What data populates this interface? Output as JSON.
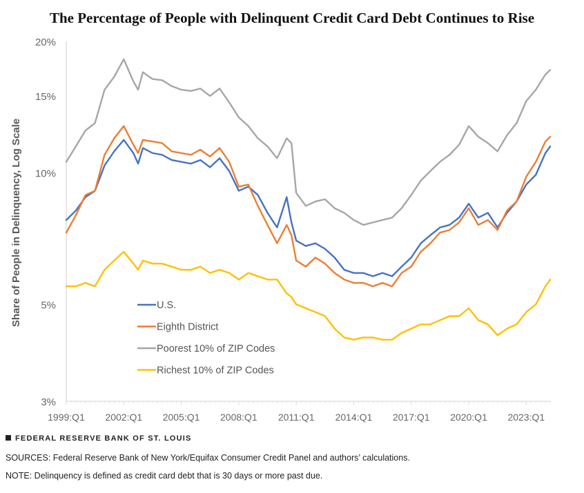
{
  "chart_data": {
    "type": "line",
    "title": "The Percentage of People with Delinquent Credit Card Debt Continues to Rise",
    "ylabel": "Share of People in Delinquency, Log Scale",
    "xlabel": "",
    "y_scale": "log",
    "ylim": [
      3,
      20
    ],
    "y_ticks": [
      3,
      5,
      10,
      15,
      20
    ],
    "y_tick_labels": [
      "3%",
      "5%",
      "10%",
      "15%",
      "20%"
    ],
    "x_ticks": [
      "1999:Q1",
      "2002:Q1",
      "2005:Q1",
      "2008:Q1",
      "2011:Q1",
      "2014:Q1",
      "2017:Q1",
      "2020:Q1",
      "2023:Q1"
    ],
    "x_start": 1999.0,
    "x_end": 2024.25,
    "grid": false,
    "legend_position": "lower-left",
    "series": [
      {
        "name": "U.S.",
        "color": "#4472c4",
        "x": [
          1999.0,
          1999.5,
          2000.0,
          2000.5,
          2001.0,
          2001.5,
          2002.0,
          2002.5,
          2002.75,
          2003.0,
          2003.5,
          2004.0,
          2004.5,
          2005.0,
          2005.5,
          2006.0,
          2006.5,
          2007.0,
          2007.5,
          2008.0,
          2008.5,
          2009.0,
          2009.5,
          2010.0,
          2010.5,
          2010.75,
          2011.0,
          2011.5,
          2012.0,
          2012.5,
          2013.0,
          2013.5,
          2014.0,
          2014.5,
          2015.0,
          2015.5,
          2016.0,
          2016.5,
          2017.0,
          2017.5,
          2018.0,
          2018.5,
          2019.0,
          2019.5,
          2020.0,
          2020.5,
          2021.0,
          2021.5,
          2022.0,
          2022.5,
          2023.0,
          2023.5,
          2024.0,
          2024.25
        ],
        "values": [
          7.8,
          8.2,
          8.8,
          9.1,
          10.4,
          11.2,
          11.9,
          11.1,
          10.5,
          11.4,
          11.1,
          11.0,
          10.7,
          10.6,
          10.5,
          10.7,
          10.3,
          10.8,
          10.1,
          9.1,
          9.3,
          8.9,
          8.1,
          7.5,
          8.8,
          7.7,
          7.0,
          6.8,
          6.9,
          6.7,
          6.4,
          6.0,
          5.9,
          5.9,
          5.8,
          5.9,
          5.8,
          6.1,
          6.4,
          6.9,
          7.2,
          7.5,
          7.6,
          7.9,
          8.5,
          7.9,
          8.1,
          7.5,
          8.1,
          8.6,
          9.4,
          9.9,
          11.1,
          11.5
        ]
      },
      {
        "name": "Eighth District",
        "color": "#ed7d31",
        "x": [
          1999.0,
          1999.5,
          2000.0,
          2000.5,
          2001.0,
          2001.5,
          2002.0,
          2002.5,
          2002.75,
          2003.0,
          2003.5,
          2004.0,
          2004.5,
          2005.0,
          2005.5,
          2006.0,
          2006.5,
          2007.0,
          2007.5,
          2008.0,
          2008.5,
          2009.0,
          2009.5,
          2010.0,
          2010.5,
          2010.75,
          2011.0,
          2011.5,
          2012.0,
          2012.5,
          2013.0,
          2013.5,
          2014.0,
          2014.5,
          2015.0,
          2015.5,
          2016.0,
          2016.5,
          2017.0,
          2017.5,
          2018.0,
          2018.5,
          2019.0,
          2019.5,
          2020.0,
          2020.5,
          2021.0,
          2021.5,
          2022.0,
          2022.5,
          2023.0,
          2023.5,
          2024.0,
          2024.25
        ],
        "values": [
          7.3,
          8.0,
          8.9,
          9.1,
          11.0,
          12.0,
          12.8,
          11.6,
          11.1,
          11.9,
          11.8,
          11.7,
          11.2,
          11.1,
          11.0,
          11.3,
          10.9,
          11.4,
          10.6,
          9.3,
          9.4,
          8.4,
          7.6,
          6.9,
          7.6,
          7.2,
          6.3,
          6.1,
          6.4,
          6.2,
          5.9,
          5.7,
          5.6,
          5.6,
          5.5,
          5.6,
          5.5,
          5.9,
          6.1,
          6.6,
          6.9,
          7.3,
          7.4,
          7.7,
          8.3,
          7.6,
          7.8,
          7.4,
          8.2,
          8.6,
          9.8,
          10.6,
          11.8,
          12.1
        ]
      },
      {
        "name": "Poorest 10% of ZIP Codes",
        "color": "#a6a6a6",
        "x": [
          1999.0,
          1999.5,
          2000.0,
          2000.5,
          2001.0,
          2001.5,
          2002.0,
          2002.5,
          2002.75,
          2003.0,
          2003.5,
          2004.0,
          2004.5,
          2005.0,
          2005.5,
          2006.0,
          2006.5,
          2007.0,
          2007.5,
          2008.0,
          2008.5,
          2009.0,
          2009.5,
          2010.0,
          2010.5,
          2010.75,
          2011.0,
          2011.5,
          2012.0,
          2012.5,
          2013.0,
          2013.5,
          2014.0,
          2014.5,
          2015.0,
          2015.5,
          2016.0,
          2016.5,
          2017.0,
          2017.5,
          2018.0,
          2018.5,
          2019.0,
          2019.5,
          2020.0,
          2020.5,
          2021.0,
          2021.5,
          2022.0,
          2022.5,
          2023.0,
          2023.5,
          2024.0,
          2024.25
        ],
        "values": [
          10.6,
          11.5,
          12.5,
          13.0,
          15.5,
          16.6,
          18.2,
          16.2,
          15.5,
          17.0,
          16.4,
          16.3,
          15.8,
          15.5,
          15.4,
          15.6,
          15.0,
          15.6,
          14.5,
          13.4,
          12.8,
          12.0,
          11.5,
          10.8,
          12.0,
          11.7,
          9.0,
          8.4,
          8.6,
          8.7,
          8.3,
          8.1,
          7.8,
          7.6,
          7.7,
          7.8,
          7.9,
          8.3,
          8.9,
          9.6,
          10.1,
          10.6,
          11.0,
          11.6,
          12.8,
          12.1,
          11.7,
          11.2,
          12.2,
          13.0,
          14.6,
          15.5,
          16.8,
          17.2
        ]
      },
      {
        "name": "Richest 10% of ZIP Codes",
        "color": "#ffc000",
        "x": [
          1999.0,
          1999.5,
          2000.0,
          2000.5,
          2001.0,
          2001.5,
          2002.0,
          2002.5,
          2002.75,
          2003.0,
          2003.5,
          2004.0,
          2004.5,
          2005.0,
          2005.5,
          2006.0,
          2006.5,
          2007.0,
          2007.5,
          2008.0,
          2008.5,
          2009.0,
          2009.5,
          2010.0,
          2010.5,
          2010.75,
          2011.0,
          2011.5,
          2012.0,
          2012.5,
          2013.0,
          2013.5,
          2014.0,
          2014.5,
          2015.0,
          2015.5,
          2016.0,
          2016.5,
          2017.0,
          2017.5,
          2018.0,
          2018.5,
          2019.0,
          2019.5,
          2020.0,
          2020.5,
          2021.0,
          2021.5,
          2022.0,
          2022.5,
          2023.0,
          2023.5,
          2024.0,
          2024.25
        ],
        "values": [
          5.5,
          5.5,
          5.6,
          5.5,
          6.0,
          6.3,
          6.6,
          6.2,
          6.0,
          6.3,
          6.2,
          6.2,
          6.1,
          6.0,
          6.0,
          6.1,
          5.9,
          6.0,
          5.9,
          5.7,
          5.9,
          5.8,
          5.7,
          5.7,
          5.3,
          5.2,
          5.0,
          4.9,
          4.8,
          4.7,
          4.4,
          4.2,
          4.15,
          4.2,
          4.2,
          4.15,
          4.15,
          4.3,
          4.4,
          4.5,
          4.5,
          4.6,
          4.7,
          4.7,
          4.9,
          4.6,
          4.5,
          4.25,
          4.4,
          4.5,
          4.8,
          5.0,
          5.5,
          5.7
        ]
      }
    ]
  },
  "footer": {
    "brand": "FEDERAL RESERVE BANK OF ST. LOUIS",
    "sources": "SOURCES: Federal Reserve Bank of New York/Equifax Consumer Credit Panel and authors’ calculations.",
    "note": "NOTE: Delinquency is defined as credit card debt that is 30 days or more past due."
  }
}
